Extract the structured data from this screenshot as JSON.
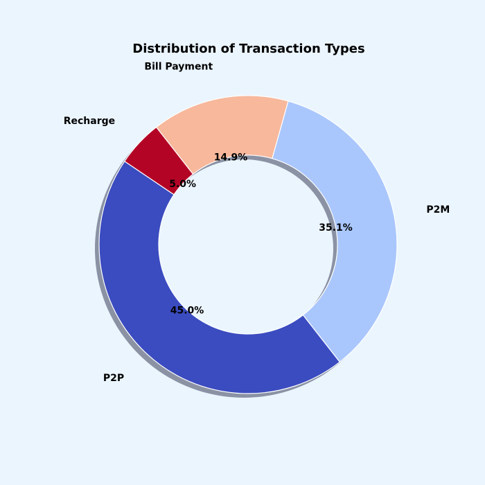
{
  "chart_data": {
    "type": "pie",
    "title": "Distribution of Transaction Types",
    "donut": true,
    "shadow": true,
    "slices": [
      {
        "label": "P2P",
        "value": 45.0,
        "pct_label": "45.0%",
        "color": "#3b4cc0"
      },
      {
        "label": "P2M",
        "value": 35.1,
        "pct_label": "35.1%",
        "color": "#aac7fd"
      },
      {
        "label": "Bill Payment",
        "value": 14.9,
        "pct_label": "14.9%",
        "color": "#f7b89c"
      },
      {
        "label": "Recharge",
        "value": 5.0,
        "pct_label": "5.0%",
        "color": "#b40426"
      }
    ]
  },
  "colors": {
    "background": "#ebf5fe",
    "shadow": "#3a3f5a",
    "edge": "#ffffff"
  }
}
